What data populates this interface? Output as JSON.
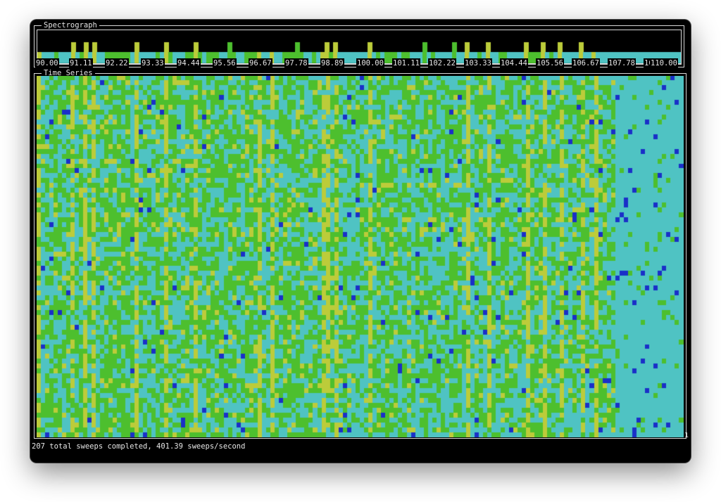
{
  "app": {
    "title": "Spectrograph"
  },
  "spectrograph": {
    "title": "Spectrograph",
    "axis_ticks": [
      "90.00",
      "91.11",
      "92.22",
      "93.33",
      "94.44",
      "95.56",
      "96.67",
      "97.78",
      "98.89",
      "100.00",
      "101.11",
      "102.22",
      "103.33",
      "104.44",
      "105.56",
      "106.67",
      "107.78",
      "108.89",
      "110.00"
    ]
  },
  "timeseries": {
    "title": "Time Series",
    "corner_label": "1"
  },
  "status": {
    "text": "207 total sweeps completed, 401.39 sweeps/second"
  },
  "colors": {
    "background": "#000000",
    "level_low": "#4fc3c3",
    "level_mid": "#4dbf2e",
    "level_high": "#bccc3a",
    "level_peak": "#1a2fc8",
    "frame": "#d8d8d8"
  }
}
